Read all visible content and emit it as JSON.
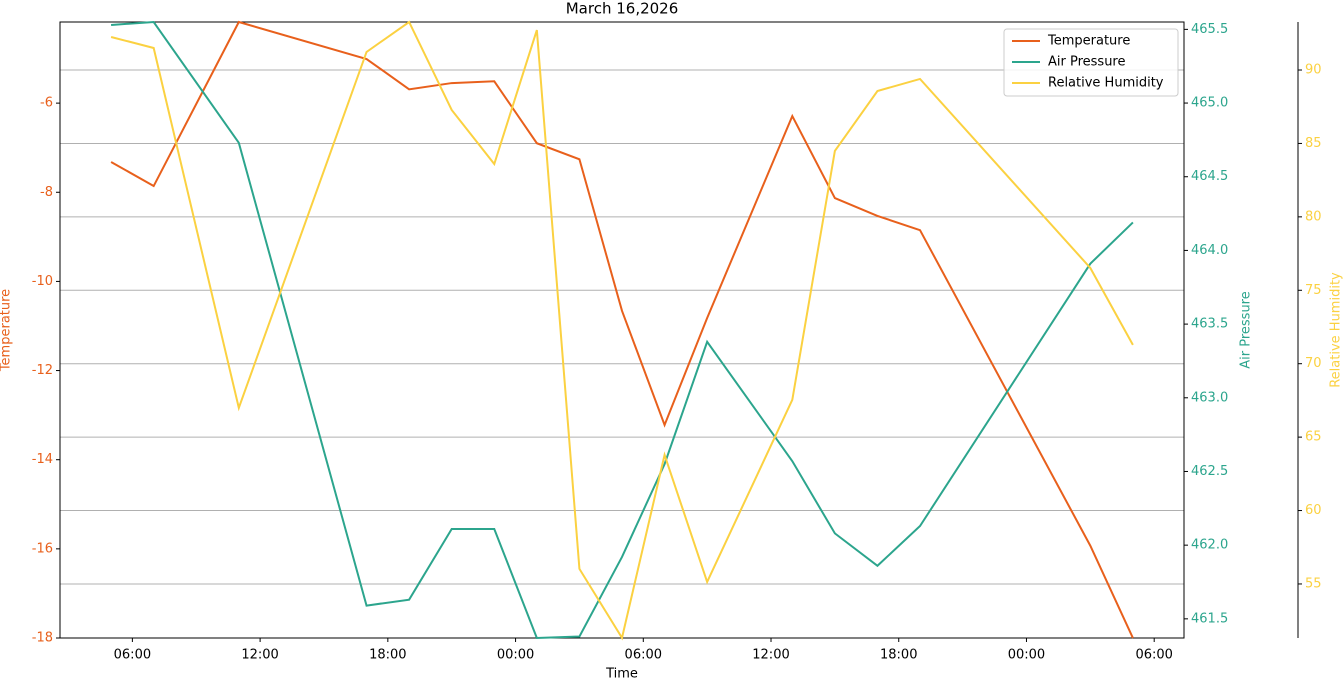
{
  "chart_data": {
    "type": "line",
    "title": "March 16,2026",
    "xlabel": "Time",
    "x": [
      5,
      7,
      11,
      17,
      19,
      21,
      23,
      25,
      27,
      29,
      31,
      33,
      37,
      39,
      41,
      43,
      51,
      53
    ],
    "xlim": [
      2.6,
      55.4
    ],
    "xticks": [
      {
        "value": 6,
        "label": "06:00"
      },
      {
        "value": 12,
        "label": "12:00"
      },
      {
        "value": 18,
        "label": "18:00"
      },
      {
        "value": 24,
        "label": "00:00"
      },
      {
        "value": 30,
        "label": "06:00"
      },
      {
        "value": 36,
        "label": "12:00"
      },
      {
        "value": 42,
        "label": "18:00"
      },
      {
        "value": 48,
        "label": "00:00"
      },
      {
        "value": 54,
        "label": "06:00"
      }
    ],
    "ylabel": "Temperature",
    "ylim": [
      -18,
      -4.18
    ],
    "yticks": [
      -18,
      -16,
      -14,
      -12,
      -10,
      -8,
      -6
    ],
    "y2label": "Air Pressure",
    "y2lim": [
      461.37,
      465.55
    ],
    "y2ticks": [
      461.5,
      {
        "value": 462,
        "label": "462.0"
      },
      462.5,
      {
        "value": 463,
        "label": "463.0"
      },
      463.5,
      {
        "value": 464,
        "label": "464.0"
      },
      464.5,
      {
        "value": 465,
        "label": "465.0"
      },
      465.5
    ],
    "y3label": "Relative Humidity",
    "y3lim": [
      51.32,
      93.27
    ],
    "y3ticks": [
      55,
      60,
      65,
      70,
      75,
      80,
      85,
      90
    ],
    "grid_axis": "y3",
    "legend": "upper right",
    "series": [
      {
        "name": "Temperature",
        "color": "#e8601c",
        "axis": "y",
        "values": [
          -7.32,
          -7.86,
          -4.18,
          -5.01,
          -5.69,
          -5.55,
          -5.51,
          -6.9,
          -7.26,
          -10.66,
          -13.22,
          -10.82,
          -6.29,
          -8.13,
          -8.53,
          -8.85,
          -15.93,
          -18.0
        ]
      },
      {
        "name": "Air Pressure",
        "color": "#2ca58d",
        "axis": "y2",
        "values": [
          465.53,
          465.55,
          464.73,
          461.59,
          461.63,
          462.11,
          462.11,
          461.37,
          461.38,
          461.92,
          462.55,
          463.38,
          462.57,
          462.08,
          461.86,
          462.13,
          463.91,
          464.19
        ]
      },
      {
        "name": "Relative Humidity",
        "color": "#fbd141",
        "axis": "y3",
        "values": [
          92.25,
          91.5,
          66.99,
          91.23,
          93.27,
          87.28,
          83.6,
          92.72,
          56.03,
          51.33,
          63.79,
          55.14,
          67.54,
          84.49,
          88.57,
          89.39,
          76.52,
          71.28
        ]
      }
    ]
  }
}
